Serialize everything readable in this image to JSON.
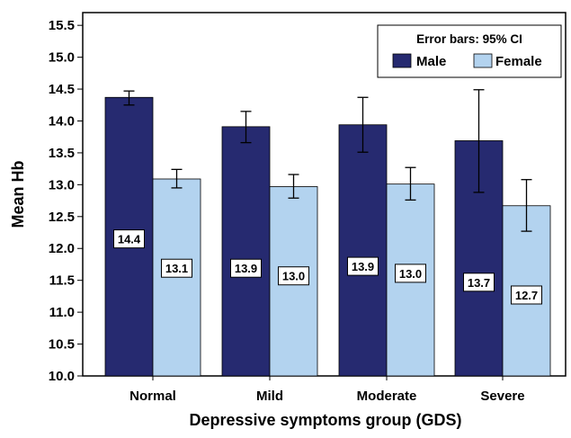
{
  "chart_data": {
    "type": "bar",
    "title": "",
    "xlabel": "Depressive symptoms group (GDS)",
    "ylabel": "Mean Hb",
    "categories": [
      "Normal",
      "Mild",
      "Moderate",
      "Severe"
    ],
    "ylim": [
      10.0,
      15.7
    ],
    "yticks": [
      "10.0",
      "10.5",
      "11.0",
      "11.5",
      "12.0",
      "12.5",
      "13.0",
      "13.5",
      "14.0",
      "14.5",
      "15.0",
      "15.5"
    ],
    "grid": false,
    "legend": {
      "title": "Error bars: 95% CI",
      "placement": "top-right"
    },
    "series": [
      {
        "name": "Male",
        "color": "#262a70",
        "values": [
          14.37,
          13.91,
          13.94,
          13.69
        ],
        "labels": [
          "14.4",
          "13.9",
          "13.9",
          "13.7"
        ],
        "ci_low": [
          14.25,
          13.66,
          13.51,
          12.88
        ],
        "ci_high": [
          14.47,
          14.15,
          14.37,
          14.49
        ]
      },
      {
        "name": "Female",
        "color": "#b3d3ef",
        "values": [
          13.09,
          12.97,
          13.01,
          12.67
        ],
        "labels": [
          "13.1",
          "13.0",
          "13.0",
          "12.7"
        ],
        "ci_low": [
          12.95,
          12.79,
          12.76,
          12.27
        ],
        "ci_high": [
          13.24,
          13.16,
          13.27,
          13.08
        ]
      }
    ]
  }
}
